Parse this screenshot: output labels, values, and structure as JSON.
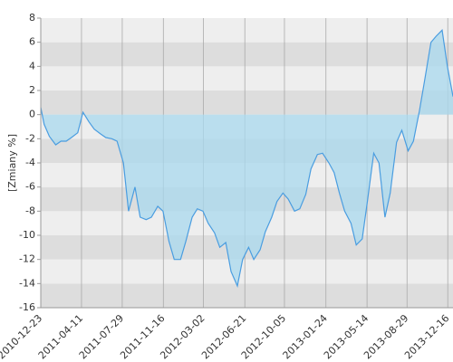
{
  "chart_data": {
    "type": "area",
    "y_label": "[Zmiany %]",
    "x": [
      "2010-12-23",
      "2011-01-01",
      "2011-01-15",
      "2011-02-01",
      "2011-02-15",
      "2011-03-01",
      "2011-03-15",
      "2011-04-01",
      "2011-04-15",
      "2011-05-01",
      "2011-05-15",
      "2011-06-01",
      "2011-06-15",
      "2011-07-01",
      "2011-07-15",
      "2011-08-01",
      "2011-08-15",
      "2011-09-01",
      "2011-09-15",
      "2011-10-01",
      "2011-10-15",
      "2011-11-01",
      "2011-11-15",
      "2011-12-01",
      "2011-12-15",
      "2012-01-01",
      "2012-01-15",
      "2012-02-01",
      "2012-02-15",
      "2012-03-01",
      "2012-03-15",
      "2012-04-01",
      "2012-04-15",
      "2012-05-01",
      "2012-05-15",
      "2012-06-01",
      "2012-06-15",
      "2012-07-01",
      "2012-07-15",
      "2012-08-01",
      "2012-08-15",
      "2012-09-01",
      "2012-09-15",
      "2012-10-01",
      "2012-10-15",
      "2012-11-01",
      "2012-11-15",
      "2012-12-01",
      "2012-12-15",
      "2013-01-01",
      "2013-01-15",
      "2013-02-01",
      "2013-02-15",
      "2013-03-01",
      "2013-03-15",
      "2013-04-01",
      "2013-04-15",
      "2013-05-01",
      "2013-05-15",
      "2013-06-01",
      "2013-06-15",
      "2013-07-01",
      "2013-07-15",
      "2013-08-01",
      "2013-08-15",
      "2013-09-01",
      "2013-09-15",
      "2013-10-01",
      "2013-10-15",
      "2013-11-01",
      "2013-11-15",
      "2013-12-01",
      "2013-12-15",
      "2013-12-30"
    ],
    "values": [
      0.6,
      -0.8,
      -1.8,
      -2.5,
      -2.2,
      -2.2,
      -1.9,
      -1.5,
      0.2,
      -0.6,
      -1.2,
      -1.6,
      -1.9,
      -2,
      -2.2,
      -4,
      -8,
      -6,
      -8.5,
      -8.7,
      -8.5,
      -7.6,
      -8,
      -10.5,
      -12,
      -12,
      -10.5,
      -8.5,
      -7.8,
      -8,
      -9,
      -9.8,
      -11,
      -10.6,
      -13,
      -14.2,
      -12,
      -11,
      -12,
      -11.2,
      -9.7,
      -8.5,
      -7.2,
      -6.5,
      -7,
      -8,
      -7.8,
      -6.6,
      -4.5,
      -3.3,
      -3.2,
      -4,
      -4.8,
      -6.5,
      -8,
      -9,
      -10.8,
      -10.3,
      -7.2,
      -3.2,
      -4,
      -8.5,
      -6.5,
      -2.3,
      -1.3,
      -3,
      -2.2,
      0.3,
      2.8,
      6,
      6.5,
      7,
      4,
      1.5
    ],
    "line_color": "#4a9de0",
    "fill_color": "#a8d8ee",
    "band_colors": [
      "#eeeeee",
      "#dddddd"
    ],
    "xlim": [
      "2010-12-23",
      "2013-12-30"
    ],
    "xticks": [
      "2010-12-23",
      "2011-04-11",
      "2011-07-29",
      "2011-11-16",
      "2012-03-02",
      "2012-06-21",
      "2012-10-05",
      "2013-01-24",
      "2013-05-14",
      "2013-08-29",
      "2013-12-16"
    ],
    "ylim": [
      -16,
      8
    ],
    "yticks": [
      -16,
      -14,
      -12,
      -10,
      -8,
      -6,
      -4,
      -2,
      0,
      2,
      4,
      6,
      8
    ],
    "grid": true
  }
}
